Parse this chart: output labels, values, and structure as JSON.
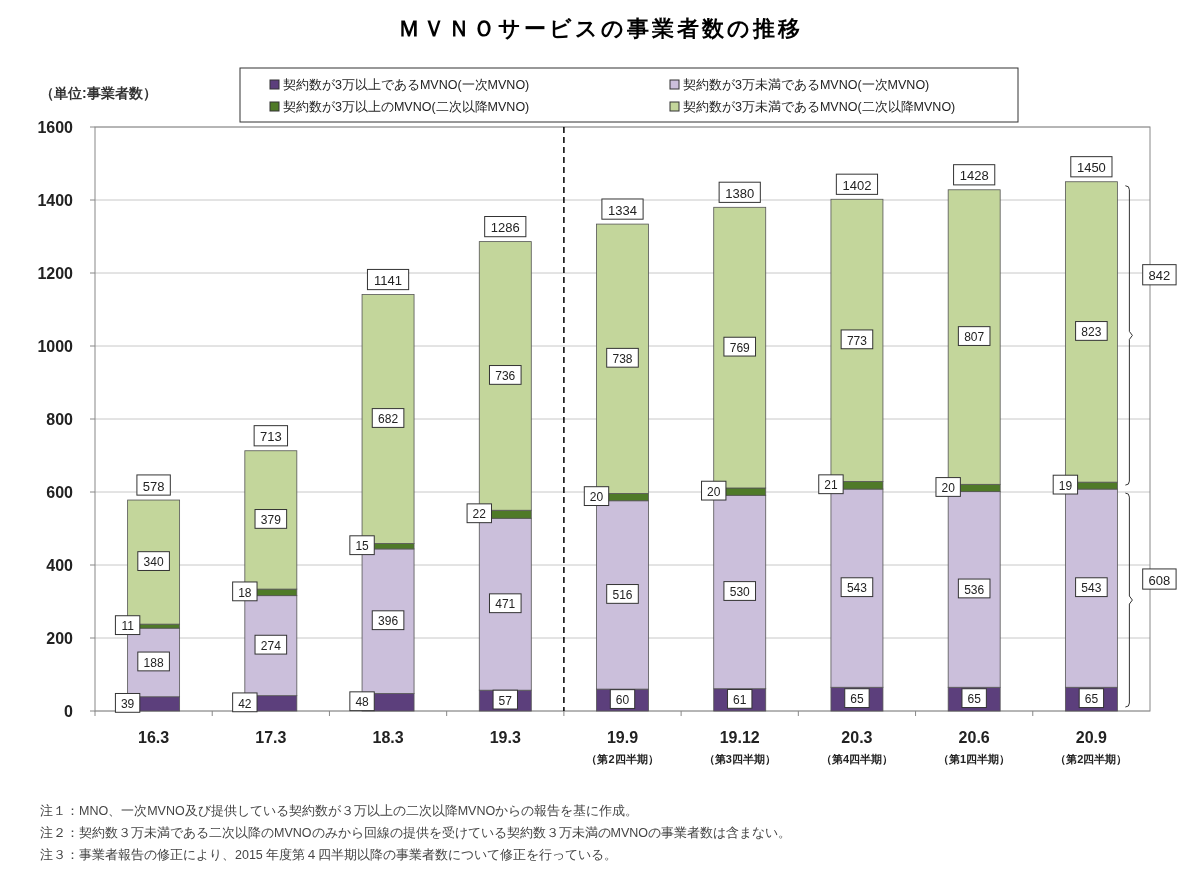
{
  "chart_data": {
    "type": "bar",
    "stacked": true,
    "title": "ＭＶＮＯサービスの事業者数の推移",
    "ylabel": "（単位:事業者数）",
    "categories": [
      "16.3",
      "17.3",
      "18.3",
      "19.3",
      "19.9\n（第2四半期）",
      "19.12\n（第3四半期）",
      "20.3\n（第4四半期）",
      "20.6\n（第1四半期）",
      "20.9\n（第2四半期）"
    ],
    "series": [
      {
        "name": "契約数が3万以上であるMVNO(一次MVNO)",
        "color": "#5c3f7c",
        "values": [
          39,
          42,
          48,
          57,
          60,
          61,
          65,
          65,
          65
        ]
      },
      {
        "name": "契約数が3万未満であるMVNO(一次MVNO)",
        "color": "#cbbfdb",
        "values": [
          188,
          274,
          396,
          471,
          516,
          530,
          543,
          536,
          543
        ]
      },
      {
        "name": "契約数が3万以上のMVNO(二次以降MVNO)",
        "color": "#4f7a28",
        "values": [
          11,
          18,
          15,
          22,
          20,
          20,
          21,
          20,
          19
        ]
      },
      {
        "name": "契約数が3万未満であるMVNO(二次以降MVNO)",
        "color": "#c3d69b",
        "values": [
          340,
          379,
          682,
          736,
          738,
          769,
          773,
          807,
          823
        ]
      }
    ],
    "totals": [
      "578",
      "713",
      "1141",
      "1286",
      "1334",
      "1380",
      "1402",
      "1428",
      "1450"
    ],
    "data_labels": true,
    "ylim": [
      0,
      1600
    ],
    "yticks": [
      0,
      200,
      400,
      600,
      800,
      1000,
      1200,
      1400,
      1600
    ],
    "grid": "y",
    "legend": "top",
    "ref_lines": [
      {
        "axis": "x",
        "value": "19.9\n（第2四半期）",
        "line_style": "dashed",
        "color": "#000000"
      }
    ],
    "annotations": [
      "842",
      "608",
      "注１：MNO、一次MVNO及び提供している契約数が３万以上の二次以降MVNOからの報告を基に作成。",
      "注２：契約数３万未満である二次以降のMVNOのみから回線の提供を受けている契約数３万未満のMVNOの事業者数は含まない。",
      "注３：事業者報告の修正により、2015 年度第４四半期以降の事業者数について修正を行っている。"
    ]
  }
}
